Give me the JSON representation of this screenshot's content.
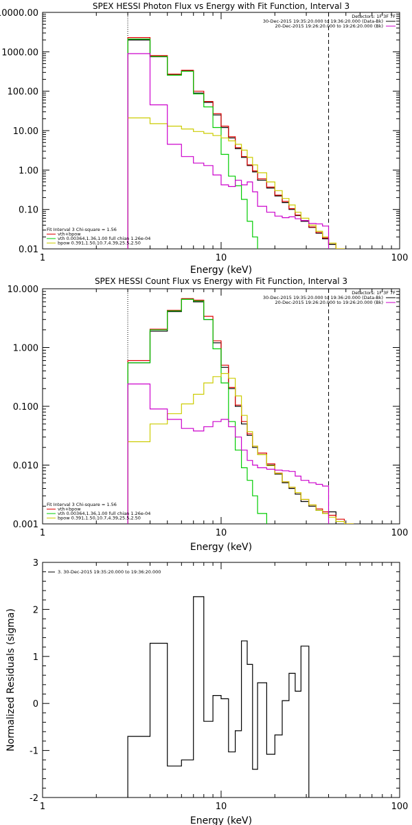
{
  "colors": {
    "black": "#000000",
    "red": "#dd0000",
    "green": "#00cc00",
    "magenta": "#cc00cc",
    "yellow": "#cccc00"
  },
  "chart_data": [
    {
      "type": "line",
      "scale": "log-log",
      "title": "SPEX HESSI Photon Flux vs Energy with Fit Function, Interval 3",
      "xlabel": "Energy (keV)",
      "ylabel": "",
      "xlim": [
        1,
        100
      ],
      "ylim": [
        0.01,
        10000
      ],
      "xticks": [
        {
          "v": 1,
          "label": "1"
        },
        {
          "v": 10,
          "label": "10"
        },
        {
          "v": 100,
          "label": "100"
        }
      ],
      "yticks": [
        {
          "v": 10000,
          "label": "10000.00"
        },
        {
          "v": 1000,
          "label": "1000.00"
        },
        {
          "v": 100,
          "label": "100.00"
        },
        {
          "v": 10,
          "label": "10.00"
        },
        {
          "v": 1,
          "label": "1.00"
        },
        {
          "v": 0.1,
          "label": "0.10"
        },
        {
          "v": 0.01,
          "label": "0.01"
        }
      ],
      "vlines": [
        {
          "x": 3,
          "style": "dotted"
        },
        {
          "x": 40,
          "style": "dashed"
        }
      ],
      "edges": [
        3,
        4,
        5,
        6,
        7,
        8,
        9,
        10,
        11,
        12,
        13,
        14,
        15,
        16,
        18,
        20,
        22,
        24,
        26,
        28,
        31,
        34,
        37,
        40,
        44,
        49
      ],
      "series": [
        {
          "key": "data",
          "color": "black",
          "values": [
            2000,
            750,
            260,
            330,
            90,
            52,
            25,
            12,
            6.5,
            3.5,
            2.1,
            1.3,
            0.9,
            0.55,
            0.35,
            0.22,
            0.15,
            0.1,
            0.07,
            0.05,
            0.035,
            0.025,
            0.018,
            0.013
          ]
        },
        {
          "key": "total",
          "color": "red",
          "values": [
            2300,
            800,
            270,
            340,
            100,
            55,
            27,
            13,
            7,
            3.7,
            2.2,
            1.35,
            0.95,
            0.6,
            0.37,
            0.23,
            0.16,
            0.105,
            0.072,
            0.052,
            0.036,
            0.026,
            0.019,
            0.014,
            0.01
          ]
        },
        {
          "key": "vth",
          "color": "green",
          "values": [
            2100,
            760,
            255,
            320,
            85,
            40,
            12,
            2.5,
            0.7,
            0.4,
            0.18,
            0.05,
            0.02,
            0.008
          ]
        },
        {
          "key": "bpow",
          "color": "yellow",
          "values": [
            21,
            15,
            13,
            11,
            9.5,
            8.5,
            7.5,
            6.5,
            5.5,
            4.5,
            3.2,
            2.1,
            1.35,
            0.85,
            0.5,
            0.3,
            0.19,
            0.13,
            0.085,
            0.06,
            0.04,
            0.028,
            0.02,
            0.014,
            0.01
          ]
        },
        {
          "key": "bk",
          "color": "magenta",
          "values": [
            900,
            45,
            4.5,
            2.2,
            1.5,
            1.3,
            0.75,
            0.42,
            0.38,
            0.55,
            0.42,
            0.5,
            0.28,
            0.12,
            0.085,
            0.068,
            0.062,
            0.065,
            0.058,
            0.052,
            0.044,
            0.043,
            0.038
          ]
        }
      ],
      "legend_top": [
        "Detectors: 1F 3F 7F",
        "30-Dec-2015 19:35:20.000 to 19:36:20.000 (Data-Bk)",
        "20-Dec-2015 19:26:20.000 to 19:26:20.000 (Bk)"
      ],
      "legend_top_colors": [
        "",
        "black",
        "magenta"
      ],
      "legend_bottom": [
        "Fit Interval 3   Chi-square = 1.56",
        "vth+bpow",
        "vth 0.00364,1.36,1.00  full chian 1.26e-04",
        "bpow 0.391,1.50,10.7,4.39,25.5,2.50"
      ],
      "legend_bottom_colors": [
        "",
        "red",
        "green",
        "yellow"
      ]
    },
    {
      "type": "line",
      "scale": "log-log",
      "title": "SPEX HESSI Count Flux vs Energy with Fit Function, Interval 3",
      "xlabel": "Energy (keV)",
      "ylabel": "",
      "xlim": [
        1,
        100
      ],
      "ylim": [
        0.001,
        10
      ],
      "xticks": [
        {
          "v": 1,
          "label": "1"
        },
        {
          "v": 10,
          "label": "10"
        },
        {
          "v": 100,
          "label": "100"
        }
      ],
      "yticks": [
        {
          "v": 10,
          "label": "10.000"
        },
        {
          "v": 1,
          "label": "1.000"
        },
        {
          "v": 0.1,
          "label": "0.100"
        },
        {
          "v": 0.01,
          "label": "0.010"
        },
        {
          "v": 0.001,
          "label": "0.001"
        }
      ],
      "vlines": [
        {
          "x": 3,
          "style": "dotted"
        },
        {
          "x": 40,
          "style": "dashed"
        }
      ],
      "edges": [
        3,
        4,
        5,
        6,
        7,
        8,
        9,
        10,
        11,
        12,
        13,
        14,
        15,
        16,
        18,
        20,
        22,
        24,
        26,
        28,
        31,
        34,
        37,
        40,
        44,
        49,
        55,
        62,
        70
      ],
      "series": [
        {
          "key": "data",
          "color": "black",
          "values": [
            0.55,
            1.9,
            4.1,
            6.6,
            6.0,
            3.0,
            1.2,
            0.46,
            0.2,
            0.1,
            0.05,
            0.032,
            0.02,
            0.015,
            0.01,
            0.007,
            0.005,
            0.004,
            0.0032,
            0.0024,
            0.002,
            0.0017,
            0.0015,
            0.0016
          ]
        },
        {
          "key": "total",
          "color": "red",
          "values": [
            0.6,
            2.05,
            4.3,
            6.8,
            6.4,
            3.4,
            1.3,
            0.5,
            0.21,
            0.105,
            0.055,
            0.034,
            0.021,
            0.016,
            0.0105,
            0.0073,
            0.0052,
            0.0042,
            0.0034,
            0.0026,
            0.0021,
            0.0018,
            0.0016,
            0.0014,
            0.0012,
            0.001
          ]
        },
        {
          "key": "vth",
          "color": "green",
          "values": [
            0.55,
            2.0,
            4.2,
            6.6,
            6.2,
            3.0,
            0.95,
            0.25,
            0.055,
            0.018,
            0.009,
            0.0055,
            0.003,
            0.0015,
            0.0009
          ]
        },
        {
          "key": "bpow",
          "color": "yellow",
          "values": [
            0.025,
            0.05,
            0.075,
            0.11,
            0.16,
            0.25,
            0.32,
            0.36,
            0.3,
            0.15,
            0.07,
            0.037,
            0.021,
            0.015,
            0.0098,
            0.0072,
            0.0052,
            0.0042,
            0.0034,
            0.0026,
            0.0021,
            0.0017,
            0.0015,
            0.0013,
            0.0011,
            0.001,
            0.0009,
            0.0008
          ]
        },
        {
          "key": "bk",
          "color": "magenta",
          "values": [
            0.24,
            0.09,
            0.06,
            0.042,
            0.038,
            0.045,
            0.055,
            0.06,
            0.045,
            0.03,
            0.018,
            0.012,
            0.01,
            0.009,
            0.0085,
            0.0082,
            0.008,
            0.0078,
            0.0065,
            0.0055,
            0.005,
            0.0047,
            0.0044
          ]
        }
      ],
      "legend_top": [
        "Detectors: 1F 3F 7F",
        "30-Dec-2015 19:35:20.000 to 19:36:20.000 (Data-Bk)",
        "20-Dec-2015 19:26:20.000 to 19:26:20.000 (Bk)"
      ],
      "legend_top_colors": [
        "",
        "black",
        "magenta"
      ],
      "legend_bottom": [
        "Fit Interval 3   Chi-square = 1.56",
        "vth+bpow",
        "vth 0.00364,1.36,1.00  full chian 1.26e-04",
        "bpow 0.391,1.50,10.7,4.39,25.5,2.50"
      ],
      "legend_bottom_colors": [
        "",
        "red",
        "green",
        "yellow"
      ]
    },
    {
      "type": "line",
      "scale": "log-x",
      "title": "",
      "xlabel": "Energy (keV)",
      "ylabel": "Normalized Residuals (sigma)",
      "xlim": [
        1,
        100
      ],
      "ylim": [
        -2,
        3
      ],
      "xticks": [
        {
          "v": 1,
          "label": "1"
        },
        {
          "v": 10,
          "label": "10"
        },
        {
          "v": 100,
          "label": "100"
        }
      ],
      "yticks": [
        {
          "v": 3,
          "label": "3"
        },
        {
          "v": 2,
          "label": "2"
        },
        {
          "v": 1,
          "label": "1"
        },
        {
          "v": 0,
          "label": "0"
        },
        {
          "v": -1,
          "label": "-1"
        },
        {
          "v": -2,
          "label": "-2"
        }
      ],
      "edges": [
        3,
        4,
        5,
        6,
        7,
        8,
        9,
        10,
        11,
        12,
        13,
        14,
        15,
        16,
        18,
        20,
        22,
        24,
        26,
        28,
        31,
        34,
        37,
        40
      ],
      "series": [
        {
          "key": "residuals",
          "color": "black",
          "values": [
            -0.7,
            1.28,
            -1.33,
            -1.2,
            2.27,
            -0.38,
            0.17,
            0.1,
            -1.03,
            -0.58,
            1.33,
            0.83,
            -1.4,
            0.44,
            -1.08,
            -0.67,
            0.06,
            0.64,
            0.26,
            1.22
          ]
        }
      ],
      "legend_top": [
        "3. 30-Dec-2015 19:35:20.000 to 19:36:20.000"
      ],
      "legend_top_colors": [
        "black"
      ],
      "legend_bottom": [],
      "legend_bottom_colors": []
    }
  ]
}
